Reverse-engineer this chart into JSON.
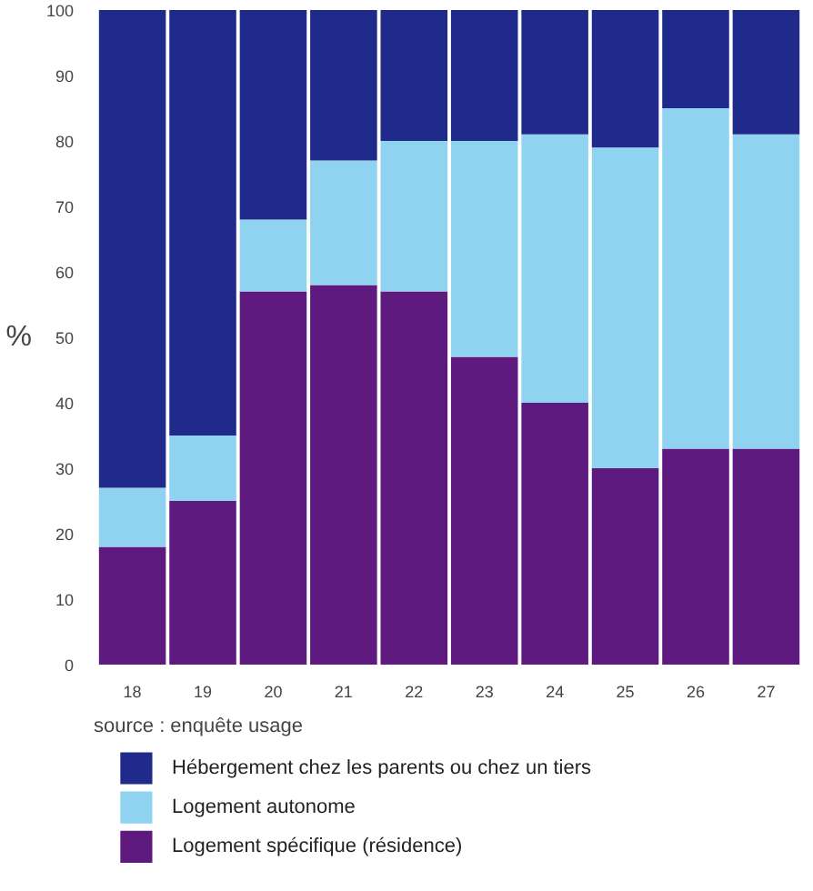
{
  "chart_data": {
    "type": "bar",
    "stacked": true,
    "ylabel": "%",
    "annotations": [
      "source : enquête usage"
    ],
    "categories": [
      "18",
      "19",
      "20",
      "21",
      "22",
      "23",
      "24",
      "25",
      "26",
      "27"
    ],
    "series": [
      {
        "name": "Logement spécifique (résidence)",
        "color": "#5e1a7e",
        "values": [
          18,
          25,
          57,
          58,
          57,
          47,
          40,
          30,
          33,
          33
        ]
      },
      {
        "name": "Logement autonome",
        "color": "#8fd3f0",
        "values": [
          9,
          10,
          11,
          19,
          23,
          33,
          41,
          49,
          52,
          48
        ]
      },
      {
        "name": "Hébergement chez les parents ou chez un tiers",
        "color": "#1f2a8a",
        "values": [
          73,
          65,
          32,
          23,
          20,
          20,
          19,
          21,
          15,
          19
        ]
      }
    ],
    "ylim": [
      0,
      100
    ],
    "yticks": [
      0,
      10,
      20,
      30,
      40,
      50,
      60,
      70,
      80,
      90,
      100
    ],
    "grid": false,
    "legend": "bottom"
  }
}
